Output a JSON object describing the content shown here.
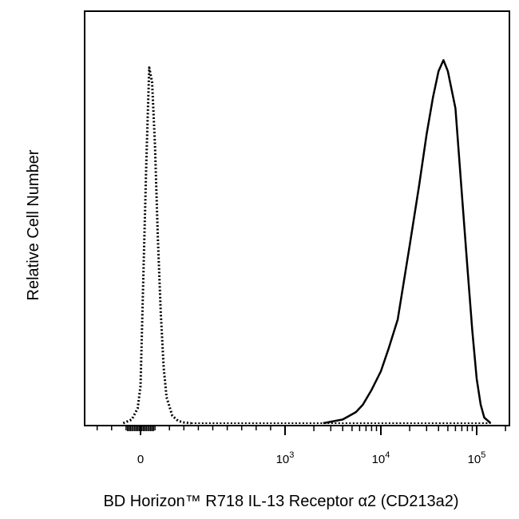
{
  "chart_data": {
    "type": "area",
    "title": "",
    "xlabel": "BD Horizon™ R718 IL-13 Receptor α2 (CD213a2)",
    "ylabel": "Relative Cell Number",
    "x_scale": "biexponential",
    "xlim": [
      -300,
      200000
    ],
    "ylim": [
      0,
      100
    ],
    "x_tick_labels": [
      {
        "value": 0,
        "base": "0",
        "exp": ""
      },
      {
        "value": 1000,
        "base": "10",
        "exp": "3"
      },
      {
        "value": 10000,
        "base": "10",
        "exp": "4"
      },
      {
        "value": 100000,
        "base": "10",
        "exp": "5"
      }
    ],
    "grid": false,
    "legend": "none",
    "series": [
      {
        "style": "dotted",
        "x": [
          -120,
          -60,
          -20,
          0,
          20,
          40,
          60,
          80,
          100,
          120,
          140,
          160,
          180,
          220,
          260,
          300,
          350
        ],
        "y": [
          0,
          1,
          4,
          10,
          40,
          70,
          96,
          92,
          75,
          50,
          30,
          15,
          7,
          2,
          0.6,
          0.2,
          0
        ]
      },
      {
        "style": "solid",
        "x": [
          2500,
          4000,
          5500,
          6500,
          8000,
          10000,
          12000,
          15000,
          20000,
          25000,
          30000,
          35000,
          40000,
          45000,
          50000,
          60000,
          70000,
          80000,
          90000,
          100000,
          110000,
          120000,
          140000
        ],
        "y": [
          0,
          1,
          3,
          5,
          9,
          14,
          20,
          28,
          48,
          64,
          78,
          88,
          95,
          98,
          95,
          85,
          62,
          42,
          25,
          12,
          5,
          1.5,
          0
        ]
      }
    ]
  }
}
